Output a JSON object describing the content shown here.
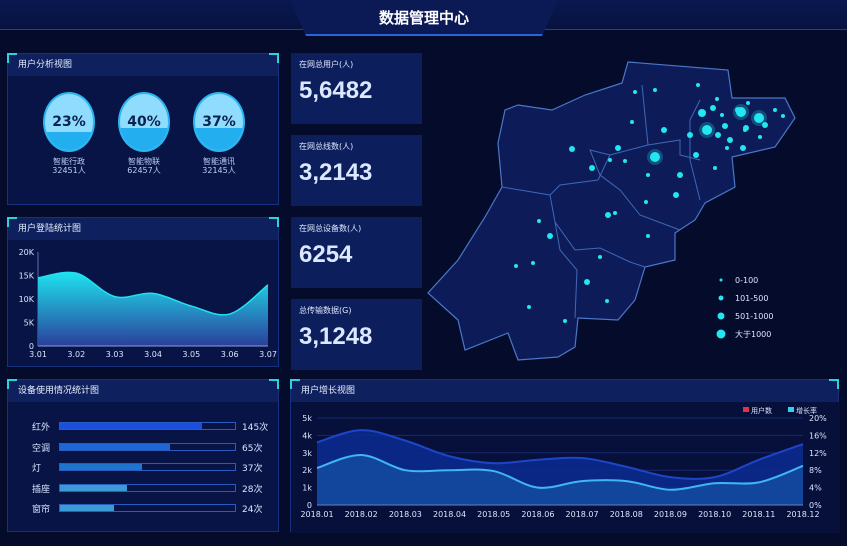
{
  "header": {
    "title": "数据管理中心"
  },
  "user_analysis": {
    "title": "用户分析视图",
    "gauges": [
      {
        "percent": 23,
        "label": "23%",
        "name": "智能行政",
        "count": "32451人"
      },
      {
        "percent": 40,
        "label": "40%",
        "name": "智能物联",
        "count": "62457人"
      },
      {
        "percent": 37,
        "label": "37%",
        "name": "智能通讯",
        "count": "32145人"
      }
    ]
  },
  "stats": [
    {
      "label": "在网总用户(人)",
      "value": "5,6482"
    },
    {
      "label": "在网总线数(人)",
      "value": "3,2143"
    },
    {
      "label": "在网总设备数(人)",
      "value": "6254"
    },
    {
      "label": "总传输数据(G)",
      "value": "3,1248"
    }
  ],
  "map": {
    "legend": [
      "0-100",
      "101-500",
      "501-1000",
      "大于1000"
    ],
    "dot_color": "#22e6f0"
  },
  "device_usage": {
    "title": "设备使用情况统计图",
    "items": [
      {
        "name": "红外",
        "count": "145次",
        "fill_percent": 81,
        "color": "#1a4fe0"
      },
      {
        "name": "空调",
        "count": "65次",
        "fill_percent": 63,
        "color": "#1d67d6"
      },
      {
        "name": "灯",
        "count": "37次",
        "fill_percent": 47,
        "color": "#1f74cf"
      },
      {
        "name": "插座",
        "count": "28次",
        "fill_percent": 38,
        "color": "#3b9ad8"
      },
      {
        "name": "窗帘",
        "count": "24次",
        "fill_percent": 31,
        "color": "#3b9ad8"
      }
    ]
  },
  "chart_data": [
    {
      "type": "area",
      "title": "用户登陆统计图",
      "categories": [
        "3.01",
        "3.02",
        "3.03",
        "3.04",
        "3.05",
        "3.06",
        "3.07"
      ],
      "values": [
        14500,
        15500,
        10500,
        11200,
        8500,
        6800,
        13000
      ],
      "ylim": [
        0,
        20000
      ],
      "yticks": [
        "0",
        "5K",
        "10K",
        "15K",
        "20K"
      ],
      "color": "#1fe3ef"
    },
    {
      "type": "area",
      "title": "用户增长视图",
      "categories": [
        "2018.01",
        "2018.02",
        "2018.03",
        "2018.04",
        "2018.05",
        "2018.06",
        "2018.07",
        "2018.08",
        "2018.09",
        "2018.10",
        "2018.11",
        "2018.12"
      ],
      "series": [
        {
          "name": "用户数",
          "axis": "left",
          "values": [
            3600,
            4300,
            3700,
            2800,
            2400,
            2600,
            2700,
            2200,
            1600,
            1600,
            2600,
            3500
          ],
          "legend_color": "#e8304a",
          "color": "#1d45c8"
        },
        {
          "name": "增长率",
          "axis": "right",
          "values": [
            8.5,
            11.5,
            8,
            8,
            7.8,
            4,
            5.5,
            5.5,
            3.5,
            5,
            5.2,
            9
          ],
          "legend_color": "#2fd0f0",
          "color": "#3fb7f0"
        }
      ],
      "ylim_left": [
        0,
        5000
      ],
      "yticks_left": [
        "0",
        "1k",
        "2k",
        "3k",
        "4k",
        "5k"
      ],
      "ylim_right": [
        0,
        20
      ],
      "yticks_right": [
        "0%",
        "4%",
        "8%",
        "12%",
        "16%",
        "20%"
      ]
    }
  ]
}
